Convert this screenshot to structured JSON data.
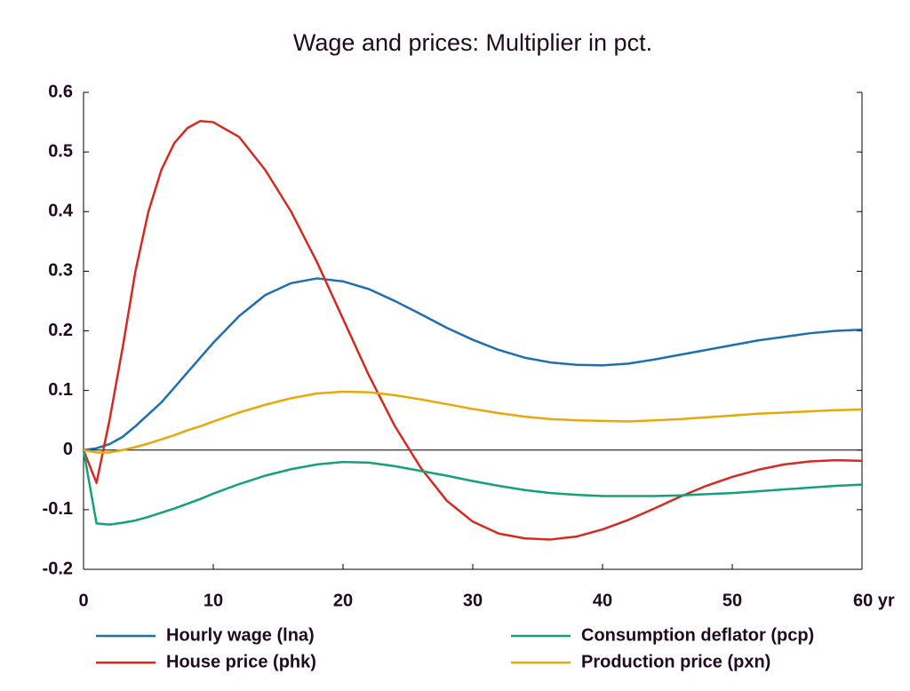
{
  "chart_data": {
    "type": "line",
    "title": "Wage and prices: Multiplier in pct.",
    "x": [
      0,
      1,
      2,
      3,
      4,
      5,
      6,
      7,
      8,
      9,
      10,
      12,
      14,
      16,
      18,
      20,
      22,
      24,
      26,
      28,
      30,
      32,
      34,
      36,
      38,
      40,
      42,
      44,
      46,
      48,
      50,
      52,
      54,
      56,
      58,
      60
    ],
    "series": [
      {
        "name": "Hourly wage (lna)",
        "color": "#1f6fae",
        "values": [
          0,
          0.003,
          0.01,
          0.022,
          0.04,
          0.06,
          0.08,
          0.105,
          0.13,
          0.155,
          0.18,
          0.225,
          0.26,
          0.28,
          0.288,
          0.283,
          0.27,
          0.25,
          0.228,
          0.205,
          0.185,
          0.168,
          0.155,
          0.147,
          0.143,
          0.142,
          0.145,
          0.152,
          0.16,
          0.168,
          0.176,
          0.184,
          0.19,
          0.196,
          0.2,
          0.202
        ]
      },
      {
        "name": "House price (phk)",
        "color": "#d7291f",
        "values": [
          0,
          -0.055,
          0.05,
          0.17,
          0.3,
          0.4,
          0.47,
          0.515,
          0.54,
          0.552,
          0.55,
          0.525,
          0.47,
          0.4,
          0.315,
          0.22,
          0.125,
          0.04,
          -0.03,
          -0.085,
          -0.12,
          -0.14,
          -0.148,
          -0.15,
          -0.145,
          -0.133,
          -0.117,
          -0.098,
          -0.078,
          -0.06,
          -0.045,
          -0.033,
          -0.024,
          -0.019,
          -0.017,
          -0.018
        ]
      },
      {
        "name": "Consumption deflator (pcp)",
        "color": "#13a07a",
        "values": [
          0,
          -0.123,
          -0.125,
          -0.122,
          -0.118,
          -0.112,
          -0.105,
          -0.098,
          -0.09,
          -0.082,
          -0.073,
          -0.057,
          -0.043,
          -0.032,
          -0.024,
          -0.02,
          -0.021,
          -0.027,
          -0.035,
          -0.043,
          -0.052,
          -0.06,
          -0.067,
          -0.072,
          -0.075,
          -0.077,
          -0.077,
          -0.077,
          -0.076,
          -0.074,
          -0.072,
          -0.069,
          -0.066,
          -0.063,
          -0.06,
          -0.058
        ]
      },
      {
        "name": "Production price (pxn)",
        "color": "#e8a80c",
        "values": [
          0,
          -0.004,
          -0.004,
          0,
          0.005,
          0.011,
          0.018,
          0.025,
          0.033,
          0.04,
          0.048,
          0.063,
          0.076,
          0.087,
          0.095,
          0.098,
          0.097,
          0.092,
          0.085,
          0.077,
          0.069,
          0.062,
          0.056,
          0.052,
          0.05,
          0.049,
          0.048,
          0.05,
          0.052,
          0.055,
          0.058,
          0.061,
          0.063,
          0.065,
          0.067,
          0.068
        ]
      }
    ],
    "xlim": [
      0,
      60
    ],
    "xticks": [
      0,
      10,
      20,
      30,
      40,
      50,
      {
        "value": 60,
        "label": "60 yr"
      }
    ],
    "ylim": [
      -0.2,
      0.6
    ],
    "yticks": [
      -0.2,
      -0.1,
      0,
      0.1,
      0.2,
      0.3,
      0.4,
      0.5,
      0.6
    ]
  }
}
